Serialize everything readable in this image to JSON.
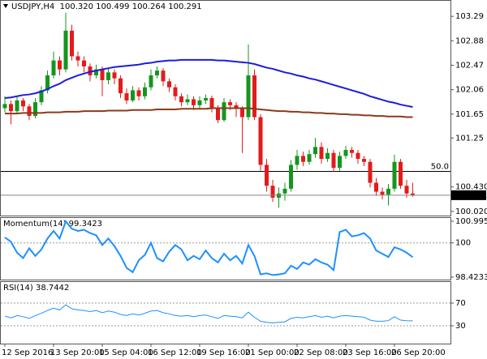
{
  "chart_data": [
    {
      "type": "candlestick",
      "title": "USDJPY,H4  100.320 100.499 100.264 100.291",
      "open": [
        101.75,
        101.82,
        101.7,
        101.88,
        101.78,
        101.62,
        101.85,
        102.05,
        102.3,
        102.55,
        102.4,
        103.05,
        102.62,
        102.55,
        102.45,
        102.3,
        102.4,
        102.22,
        102.35,
        102.25,
        102.0,
        101.88,
        102.05,
        101.95,
        102.1,
        102.3,
        102.38,
        102.2,
        102.1,
        101.95,
        101.85,
        101.9,
        101.8,
        101.88,
        101.92,
        101.75,
        101.55,
        101.85,
        101.8,
        101.75,
        101.6,
        102.3,
        101.6,
        100.8,
        100.45,
        100.25,
        100.32,
        100.4,
        100.8,
        100.95,
        100.85,
        100.98,
        101.1,
        100.9,
        101.0,
        100.75,
        100.95,
        101.05,
        101.0,
        100.9,
        100.85,
        100.5,
        100.35,
        100.3,
        100.4,
        100.85,
        100.45,
        100.32
      ],
      "high": [
        101.95,
        101.88,
        101.95,
        101.92,
        101.82,
        101.92,
        102.12,
        102.38,
        102.7,
        102.62,
        103.35,
        103.15,
        102.7,
        102.62,
        102.5,
        102.48,
        102.45,
        102.42,
        102.4,
        102.3,
        102.08,
        102.12,
        102.1,
        102.18,
        102.4,
        102.45,
        102.42,
        102.25,
        102.15,
        102.0,
        101.98,
        101.95,
        101.95,
        101.98,
        101.96,
        101.8,
        101.92,
        101.9,
        101.85,
        101.78,
        102.82,
        102.4,
        101.65,
        100.9,
        100.55,
        100.42,
        100.5,
        100.88,
        101.05,
        101.02,
        101.05,
        101.25,
        101.18,
        101.08,
        101.05,
        101.02,
        101.12,
        101.1,
        101.05,
        100.95,
        100.9,
        100.58,
        100.42,
        100.48,
        100.97,
        100.9,
        100.55,
        100.499
      ],
      "low": [
        101.68,
        101.48,
        101.65,
        101.7,
        101.55,
        101.58,
        101.8,
        102.0,
        102.25,
        102.3,
        102.35,
        102.55,
        102.45,
        102.35,
        102.2,
        102.25,
        101.95,
        102.15,
        102.15,
        101.92,
        101.82,
        101.85,
        101.88,
        101.9,
        102.05,
        102.25,
        102.12,
        102.02,
        101.88,
        101.78,
        101.8,
        101.72,
        101.75,
        101.82,
        101.68,
        101.5,
        101.52,
        101.72,
        101.6,
        101.0,
        101.55,
        101.55,
        100.7,
        100.35,
        100.18,
        100.08,
        100.2,
        100.35,
        100.72,
        100.78,
        100.8,
        100.92,
        100.82,
        100.85,
        100.68,
        100.7,
        100.9,
        100.92,
        100.82,
        100.78,
        100.42,
        100.28,
        100.22,
        100.12,
        100.35,
        100.4,
        100.25,
        100.264
      ],
      "close": [
        101.82,
        101.7,
        101.88,
        101.78,
        101.62,
        101.85,
        102.05,
        102.3,
        102.55,
        102.4,
        103.05,
        102.62,
        102.55,
        102.45,
        102.3,
        102.4,
        102.22,
        102.35,
        102.25,
        102.0,
        101.88,
        102.05,
        101.95,
        102.1,
        102.3,
        102.38,
        102.2,
        102.1,
        101.95,
        101.85,
        101.9,
        101.8,
        101.88,
        101.92,
        101.75,
        101.55,
        101.85,
        101.8,
        101.75,
        101.6,
        102.3,
        101.6,
        100.8,
        100.45,
        100.25,
        100.32,
        100.4,
        100.8,
        100.95,
        100.85,
        100.98,
        101.1,
        100.9,
        101.0,
        100.75,
        100.95,
        101.05,
        101.0,
        100.9,
        100.85,
        100.5,
        100.35,
        100.3,
        100.4,
        100.85,
        100.45,
        100.32,
        100.291
      ],
      "up_color": "#14961e",
      "down_color": "#e31b1b",
      "series": [
        {
          "color": "#1d1ddb",
          "values": [
            101.92,
            101.93,
            101.95,
            101.97,
            101.98,
            102.0,
            102.03,
            102.07,
            102.12,
            102.16,
            102.22,
            102.26,
            102.3,
            102.33,
            102.36,
            102.38,
            102.4,
            102.42,
            102.44,
            102.45,
            102.46,
            102.47,
            102.48,
            102.5,
            102.51,
            102.53,
            102.54,
            102.55,
            102.55,
            102.56,
            102.56,
            102.56,
            102.56,
            102.56,
            102.56,
            102.55,
            102.55,
            102.54,
            102.53,
            102.52,
            102.51,
            102.49,
            102.46,
            102.43,
            102.41,
            102.38,
            102.35,
            102.33,
            102.3,
            102.28,
            102.25,
            102.23,
            102.2,
            102.17,
            102.14,
            102.11,
            102.08,
            102.05,
            102.02,
            101.99,
            101.95,
            101.92,
            101.89,
            101.86,
            101.84,
            101.81,
            101.79,
            101.77
          ]
        },
        {
          "color": "#8b3a1a",
          "values": [
            101.66,
            101.66,
            101.66,
            101.67,
            101.67,
            101.67,
            101.67,
            101.68,
            101.68,
            101.68,
            101.69,
            101.69,
            101.69,
            101.7,
            101.7,
            101.7,
            101.7,
            101.71,
            101.71,
            101.71,
            101.71,
            101.72,
            101.72,
            101.72,
            101.72,
            101.73,
            101.73,
            101.73,
            101.73,
            101.74,
            101.74,
            101.74,
            101.74,
            101.74,
            101.75,
            101.75,
            101.75,
            101.75,
            101.75,
            101.75,
            101.75,
            101.74,
            101.73,
            101.72,
            101.71,
            101.7,
            101.7,
            101.69,
            101.69,
            101.68,
            101.68,
            101.67,
            101.67,
            101.66,
            101.66,
            101.65,
            101.65,
            101.64,
            101.64,
            101.63,
            101.63,
            101.62,
            101.62,
            101.61,
            101.61,
            101.61,
            101.6,
            101.6
          ]
        }
      ],
      "ylim": [
        99.95,
        103.55
      ],
      "yticks": [
        {
          "value": 100.02,
          "label": "100.020"
        },
        {
          "value": 100.43,
          "label": "100.430"
        },
        101.25,
        101.65,
        102.06,
        102.47,
        102.88,
        103.29
      ],
      "levels": [
        {
          "value": 100.69,
          "label": "50.0"
        }
      ],
      "last_price": {
        "value": 100.291,
        "label": "100.291"
      }
    },
    {
      "type": "line",
      "title": "Momentum(14) 99.3423",
      "series": [
        {
          "color": "#1e90ff",
          "values": [
            100.25,
            100.05,
            99.55,
            99.3,
            99.75,
            99.4,
            99.7,
            100.2,
            100.55,
            100.2,
            100.99,
            100.65,
            100.55,
            100.6,
            100.45,
            100.35,
            99.9,
            100.2,
            99.85,
            99.4,
            98.85,
            98.65,
            99.2,
            99.45,
            100.0,
            99.3,
            99.15,
            99.6,
            99.9,
            99.7,
            99.2,
            99.4,
            99.25,
            99.65,
            99.3,
            99.1,
            99.5,
            99.2,
            99.4,
            99.05,
            99.9,
            99.4,
            98.55,
            98.6,
            98.52,
            98.55,
            98.6,
            98.95,
            98.8,
            99.1,
            99.0,
            99.25,
            99.1,
            99.0,
            98.75,
            100.5,
            100.6,
            100.3,
            100.35,
            100.45,
            100.2,
            99.65,
            99.5,
            99.35,
            99.8,
            99.7,
            99.55,
            99.3423
          ]
        }
      ],
      "ylim": [
        98.4233,
        100.9951
      ],
      "yticks": [
        98.4233,
        100,
        100.9951
      ],
      "grid": true
    },
    {
      "type": "line",
      "title": "RSI(14) 38.7442",
      "categories": [
        "12 Sep 2016",
        null,
        null,
        null,
        null,
        null,
        null,
        null,
        "13 Sep 20:00",
        null,
        null,
        null,
        null,
        null,
        null,
        null,
        "15 Sep 04:00",
        null,
        null,
        null,
        null,
        null,
        null,
        null,
        "16 Sep 12:00",
        null,
        null,
        null,
        null,
        null,
        null,
        null,
        "19 Sep 16:00",
        null,
        null,
        null,
        null,
        null,
        null,
        null,
        "21 Sep 00:00",
        null,
        null,
        null,
        null,
        null,
        null,
        null,
        "22 Sep 08:00",
        null,
        null,
        null,
        null,
        null,
        null,
        null,
        "23 Sep 16:00",
        null,
        null,
        null,
        null,
        null,
        null,
        null,
        "26 Sep 20:00",
        null,
        null,
        null
      ],
      "series": [
        {
          "color": "#1e90ff",
          "values": [
            47,
            44,
            48,
            46,
            43,
            48,
            52,
            57,
            61,
            58,
            67,
            60,
            58,
            57,
            55,
            57,
            53,
            56,
            54,
            50,
            48,
            51,
            49,
            52,
            56,
            57,
            53,
            51,
            48,
            47,
            48,
            46,
            48,
            49,
            46,
            43,
            48,
            47,
            46,
            44,
            54,
            45,
            38,
            36,
            35,
            36,
            37,
            43,
            45,
            44,
            46,
            48,
            45,
            47,
            44,
            47,
            48,
            47,
            46,
            45,
            40,
            38,
            38,
            39,
            46,
            40,
            39,
            38.7442
          ]
        }
      ],
      "ylim": [
        0,
        100
      ],
      "yticks": [
        30,
        70
      ],
      "grid": true
    }
  ]
}
